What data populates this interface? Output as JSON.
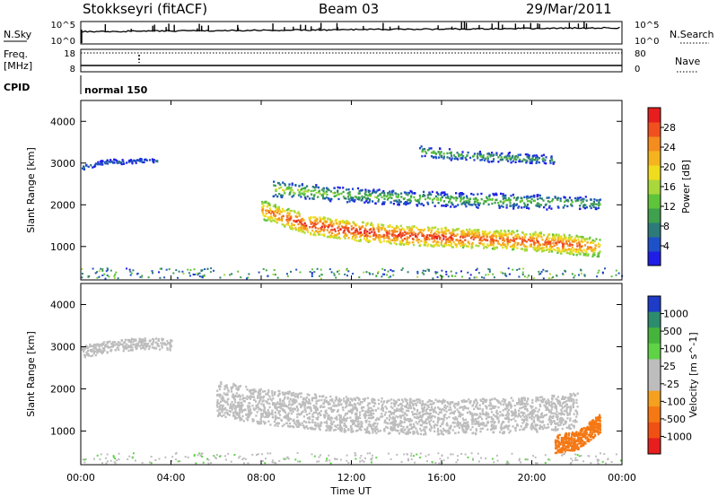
{
  "header": {
    "station": "Stokkseyri (fitACF)",
    "beam": "Beam 03",
    "date": "29/Mar/2011"
  },
  "small_panels": {
    "nsky": {
      "label": "N.Sky",
      "ticks": [
        "10^5",
        "10^0"
      ],
      "right_label": "N.Search",
      "right_ticks": [
        "10^5",
        "10^0"
      ]
    },
    "freq": {
      "label_line1": "Freq.",
      "label_line2": "[MHz]",
      "ticks": [
        "18",
        "8"
      ],
      "right_label": "Nave",
      "right_ticks": [
        "80",
        "0"
      ]
    },
    "cpid": {
      "label": "CPID",
      "value": "normal 150"
    }
  },
  "colors": {
    "power_scale": [
      "#1e1ee6",
      "#1e50c8",
      "#2d7a7a",
      "#3fa04e",
      "#5ec43a",
      "#a8d83a",
      "#f0dc1e",
      "#f5b41e",
      "#f58c1e",
      "#f0501e",
      "#e61e1e"
    ],
    "velocity_scale": [
      "#1e3cc8",
      "#2d8c6e",
      "#46b43c",
      "#5fd246",
      "#bdbdbd",
      "#bdbdbd",
      "#f5a01e",
      "#f57814",
      "#f05014",
      "#e61e1e"
    ],
    "ground_scatter": "#bdbdbd"
  },
  "chart_data": [
    {
      "type": "heatmap",
      "title": "",
      "xlabel": "",
      "ylabel": "Slant Range [km]",
      "xlim": [
        "00:00",
        "24:00"
      ],
      "ylim": [
        200,
        4500
      ],
      "x_ticks": [
        "00:00",
        "04:00",
        "08:00",
        "12:00",
        "16:00",
        "20:00",
        "00:00"
      ],
      "y_ticks": [
        1000,
        2000,
        3000,
        4000
      ],
      "colorbar": {
        "label": "Power [dB]",
        "range": [
          0,
          32
        ],
        "ticks": [
          4,
          8,
          12,
          16,
          20,
          24,
          28
        ]
      },
      "features": [
        {
          "name": "main band",
          "x": [
            8.0,
            10.0,
            12.0,
            14.0,
            16.0,
            18.0,
            20.0,
            22.0,
            23.0
          ],
          "y": [
            1900,
            1550,
            1400,
            1300,
            1250,
            1200,
            1150,
            1050,
            1000
          ],
          "power_db": [
            26,
            30,
            30,
            30,
            30,
            28,
            28,
            28,
            24
          ]
        },
        {
          "name": "upper band",
          "x": [
            8.5,
            12.0,
            16.0,
            20.0,
            23.0
          ],
          "y": [
            2400,
            2250,
            2150,
            2100,
            2050
          ],
          "power_db": [
            18,
            14,
            14,
            14,
            12
          ]
        },
        {
          "name": "early arc",
          "x": [
            0.0,
            1.0,
            2.0,
            3.0,
            3.5
          ],
          "y": [
            2900,
            3050,
            3050,
            3100,
            3050
          ],
          "power_db": [
            6,
            6,
            6,
            6,
            6
          ]
        },
        {
          "name": "late high patches",
          "x": [
            15.0,
            17.0,
            19.0,
            21.0
          ],
          "y": [
            3300,
            3200,
            3150,
            3100
          ],
          "power_db": [
            14,
            12,
            12,
            10
          ]
        }
      ]
    },
    {
      "type": "heatmap",
      "title": "",
      "xlabel": "Time UT",
      "ylabel": "Slant Range [km]",
      "xlim": [
        "00:00",
        "24:00"
      ],
      "ylim": [
        200,
        4500
      ],
      "x_ticks": [
        "00:00",
        "04:00",
        "08:00",
        "12:00",
        "16:00",
        "20:00",
        "00:00"
      ],
      "y_ticks": [
        1000,
        2000,
        3000,
        4000
      ],
      "colorbar": {
        "label": "Velocity [m s^-1]",
        "ticks": [
          "1000",
          "500",
          "100",
          "25",
          "-25",
          "-100",
          "-500",
          "-1000"
        ]
      },
      "features": [
        {
          "name": "ground scatter band",
          "x": [
            6.0,
            8.0,
            12.0,
            16.0,
            20.0,
            22.0
          ],
          "y": [
            1800,
            1600,
            1400,
            1350,
            1400,
            1500
          ],
          "velocity": [
            0,
            0,
            0,
            0,
            0,
            0
          ]
        },
        {
          "name": "negative velocity patch",
          "x": [
            21.0,
            22.0,
            22.5,
            23.0
          ],
          "y": [
            700,
            800,
            1000,
            1200
          ],
          "velocity": [
            -150,
            -200,
            -300,
            -150
          ]
        },
        {
          "name": "early arc",
          "x": [
            0.0,
            1.5,
            3.0,
            4.0
          ],
          "y": [
            2900,
            3050,
            3100,
            3050
          ],
          "velocity": [
            0,
            0,
            0,
            0
          ]
        }
      ]
    }
  ]
}
